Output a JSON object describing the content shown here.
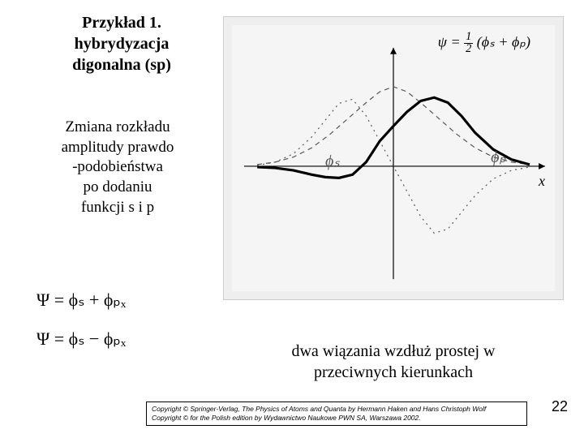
{
  "title": {
    "line1": "Przykład 1.",
    "line2": "hybrydyzacja",
    "line3": "digonalna (sp)"
  },
  "subtitle": {
    "line1": "Zmiana rozkładu",
    "line2": "amplitudy prawdo",
    "line3": "-podobieństwa",
    "line4": "po dodaniu",
    "line5": "funkcji s i p"
  },
  "equations": {
    "eq1": "Ψ = ϕₛ + ϕₚₓ",
    "eq2": "Ψ = ϕₛ − ϕₚₓ"
  },
  "chart": {
    "type": "line",
    "formula_psi": "ψ",
    "formula_half_num": "1",
    "formula_half_den": "2",
    "formula_rest": "(ϕₛ + ϕₚ)",
    "phi_s_label": "ϕₛ",
    "phi_p_label": "ϕₚ",
    "x_axis_label": "x",
    "xlim": [
      -3.2,
      3.2
    ],
    "ylim": [
      -1.3,
      1.3
    ],
    "background_color": "#f5f5f5",
    "outer_bg": "#eeeeee",
    "axis_color": "#000000",
    "series": [
      {
        "name": "phi_s",
        "stroke": "#555555",
        "stroke_width": 1.2,
        "dash": "6,5",
        "points": [
          [
            -3.0,
            0.02
          ],
          [
            -2.6,
            0.05
          ],
          [
            -2.2,
            0.11
          ],
          [
            -1.8,
            0.22
          ],
          [
            -1.4,
            0.38
          ],
          [
            -1.0,
            0.57
          ],
          [
            -0.6,
            0.76
          ],
          [
            -0.3,
            0.89
          ],
          [
            0.0,
            0.95
          ],
          [
            0.3,
            0.89
          ],
          [
            0.6,
            0.76
          ],
          [
            1.0,
            0.57
          ],
          [
            1.4,
            0.38
          ],
          [
            1.8,
            0.22
          ],
          [
            2.2,
            0.11
          ],
          [
            2.6,
            0.05
          ],
          [
            3.0,
            0.02
          ]
        ]
      },
      {
        "name": "phi_p",
        "stroke": "#555555",
        "stroke_width": 1.2,
        "dash": "2,5",
        "points": [
          [
            -3.0,
            0.01
          ],
          [
            -2.6,
            0.05
          ],
          [
            -2.2,
            0.15
          ],
          [
            -1.8,
            0.35
          ],
          [
            -1.5,
            0.55
          ],
          [
            -1.2,
            0.75
          ],
          [
            -0.9,
            0.8
          ],
          [
            -0.6,
            0.6
          ],
          [
            -0.3,
            0.3
          ],
          [
            0.0,
            0.0
          ],
          [
            0.3,
            -0.3
          ],
          [
            0.6,
            -0.6
          ],
          [
            0.9,
            -0.8
          ],
          [
            1.2,
            -0.75
          ],
          [
            1.5,
            -0.55
          ],
          [
            1.8,
            -0.35
          ],
          [
            2.2,
            -0.15
          ],
          [
            2.6,
            -0.05
          ],
          [
            3.0,
            -0.01
          ]
        ]
      },
      {
        "name": "psi_sum",
        "stroke": "#000000",
        "stroke_width": 3.2,
        "dash": "",
        "points": [
          [
            -3.0,
            -0.01
          ],
          [
            -2.6,
            -0.02
          ],
          [
            -2.2,
            -0.05
          ],
          [
            -1.8,
            -0.1
          ],
          [
            -1.5,
            -0.13
          ],
          [
            -1.2,
            -0.14
          ],
          [
            -0.9,
            -0.1
          ],
          [
            -0.6,
            0.05
          ],
          [
            -0.3,
            0.3
          ],
          [
            0.0,
            0.48
          ],
          [
            0.3,
            0.65
          ],
          [
            0.6,
            0.78
          ],
          [
            0.9,
            0.82
          ],
          [
            1.2,
            0.76
          ],
          [
            1.5,
            0.6
          ],
          [
            1.8,
            0.4
          ],
          [
            2.2,
            0.2
          ],
          [
            2.6,
            0.08
          ],
          [
            3.0,
            0.02
          ]
        ]
      }
    ]
  },
  "bottom_text": {
    "line1": "dwa wiązania wzdłuż prostej w",
    "line2": "przeciwnych kierunkach"
  },
  "copyright": {
    "line1": "Copyright © Springer-Verlag, The Physics of Atoms and Quanta by Hermann Haken and Hans Christoph Wolf",
    "line2": "Copyright © for the Polish edition by Wydawnictwo Naukowe PWN SA, Warszawa 2002."
  },
  "page_number": "22"
}
